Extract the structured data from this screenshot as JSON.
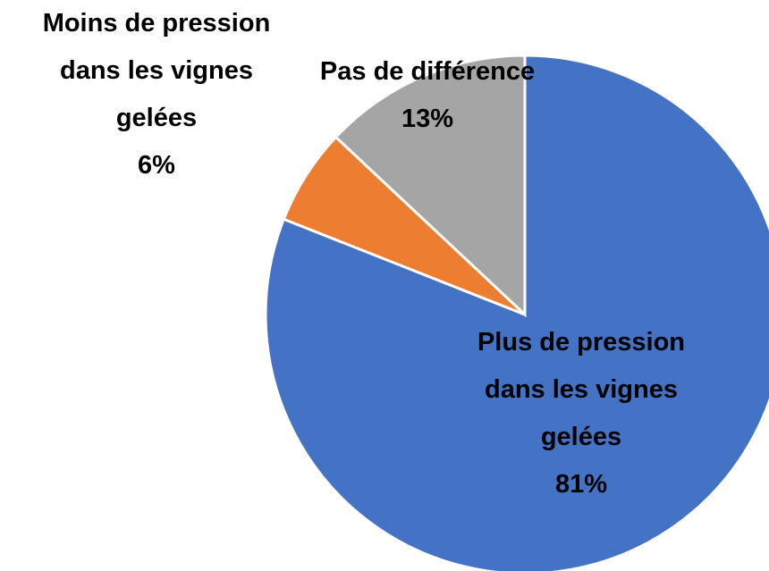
{
  "chart_data": {
    "type": "pie",
    "categories": [
      "Plus de pression dans les vignes gelées",
      "Moins de pression dans les vignes gelées",
      "Pas de différence"
    ],
    "values": [
      81,
      6,
      13
    ],
    "value_labels": [
      "81%",
      "6%",
      "13%"
    ],
    "colors": [
      "#4472c4",
      "#ed7d31",
      "#a5a5a5"
    ]
  }
}
